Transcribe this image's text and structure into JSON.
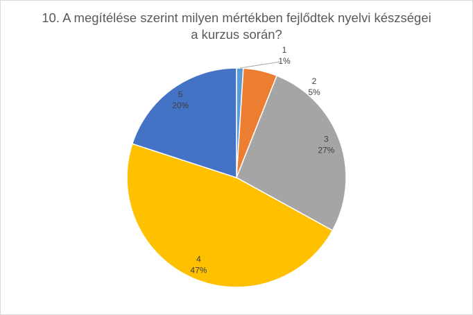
{
  "chart_data": {
    "type": "pie",
    "title": "10. A megítélése szerint milyen mértékben fejlődtek nyelvi készségei a kurzus során?",
    "categories": [
      "1",
      "2",
      "3",
      "4",
      "5"
    ],
    "values": [
      1,
      5,
      27,
      47,
      20
    ],
    "value_labels": [
      "1%",
      "5%",
      "27%",
      "47%",
      "20%"
    ],
    "colors": [
      "#5b9bd5",
      "#ed7d31",
      "#a5a5a5",
      "#ffc000",
      "#4472c4"
    ]
  }
}
